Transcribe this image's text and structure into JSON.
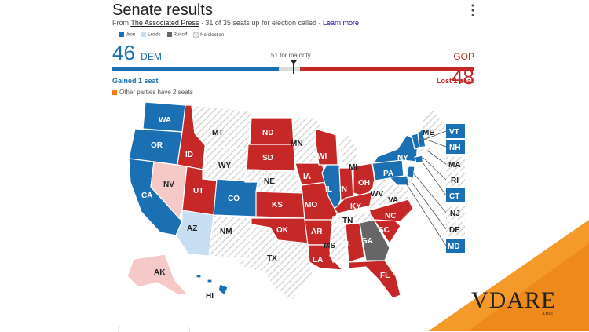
{
  "header": {
    "title": "Senate results",
    "source_prefix": "From",
    "source_name": "The Associated Press",
    "source_suffix": " · 31 of 35 seats up for election called · ",
    "learn_more": "Learn more"
  },
  "legend": {
    "items": [
      {
        "label": "Won",
        "color": "#1b6fb3"
      },
      {
        "label": "Leads",
        "color": "#c8def2"
      },
      {
        "label": "Runoff",
        "color": "#666666"
      },
      {
        "label": "No election",
        "color": "#dddddd"
      }
    ]
  },
  "summary": {
    "dem_count": "46",
    "dem_label": "DEM",
    "gop_label": "GOP",
    "gop_count": "48",
    "majority_label": "51 for majority",
    "dem_change": "Gained 1 seat",
    "gop_change": "Lost 1 seat",
    "other_note": "Other parties have 2 seats",
    "total_seats": 100
  },
  "colors": {
    "dem": "#1b6fb3",
    "dem_lead": "#c8def2",
    "gop": "#c62828",
    "gop_lead": "#f6c9c9",
    "runoff": "#666666",
    "no_election": "#dddddd",
    "other": "#f57c00"
  },
  "states": {
    "WA": "WA",
    "OR": "OR",
    "CA": "CA",
    "NV": "NV",
    "ID": "ID",
    "MT": "MT",
    "WY": "WY",
    "UT": "UT",
    "CO": "CO",
    "AZ": "AZ",
    "NM": "NM",
    "ND": "ND",
    "SD": "SD",
    "NE": "NE",
    "KS": "KS",
    "OK": "OK",
    "TX": "TX",
    "MN": "MN",
    "IA": "IA",
    "MO": "MO",
    "AR": "AR",
    "LA": "LA",
    "WI": "WI",
    "IL": "IL",
    "MI": "MI",
    "IN": "IN",
    "OH": "OH",
    "KY": "KY",
    "TN": "TN",
    "MS": "MS",
    "AL": "AL",
    "GA": "GA",
    "FL": "FL",
    "SC": "SC",
    "NC": "NC",
    "VA": "VA",
    "WV": "WV",
    "PA": "PA",
    "NY": "NY",
    "ME": "ME",
    "AK": "AK",
    "HI": "HI",
    "VT": "VT",
    "NH": "NH",
    "MA": "MA",
    "RI": "RI",
    "CT": "CT",
    "NJ": "NJ",
    "DE": "DE",
    "MD": "MD"
  },
  "watermark": {
    "brand": "VDARE",
    "domain": ".com"
  }
}
